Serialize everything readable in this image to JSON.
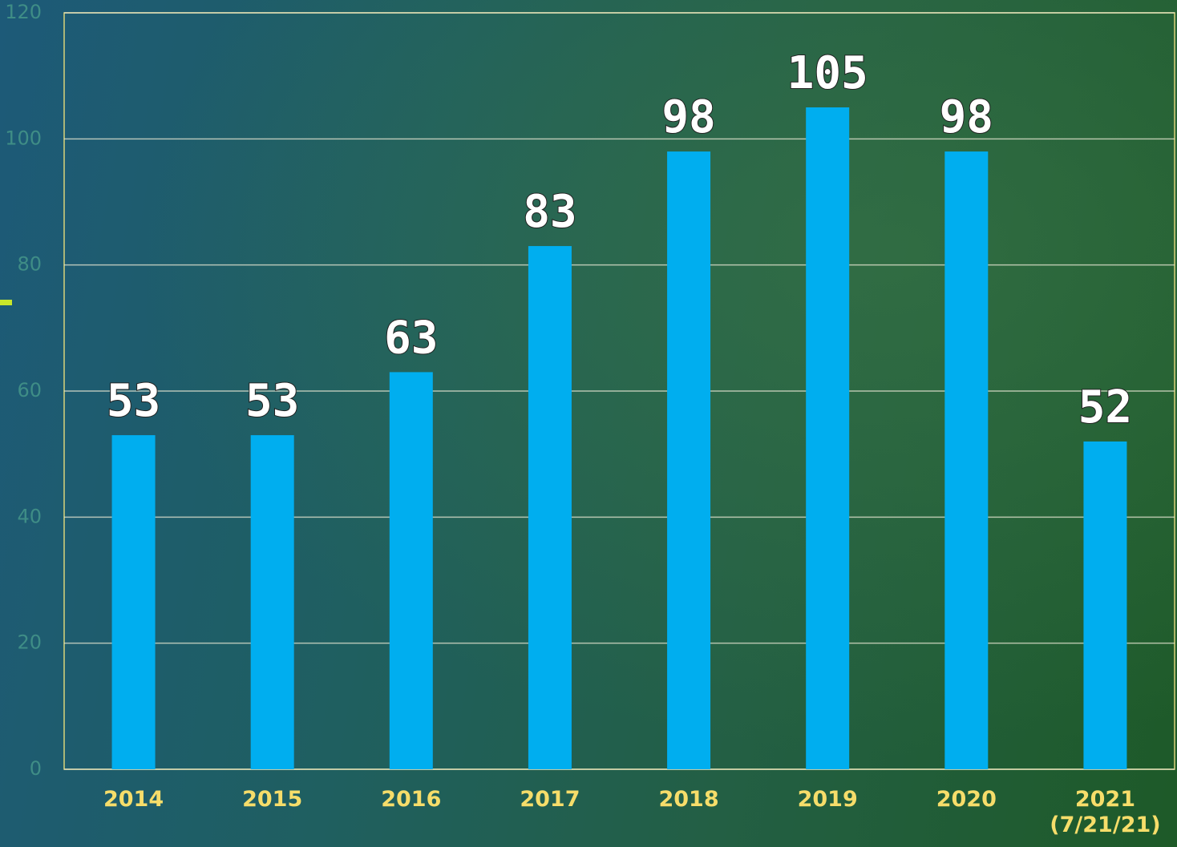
{
  "chart_data": {
    "type": "bar",
    "categories": [
      "2014",
      "2015",
      "2016",
      "2017",
      "2018",
      "2019",
      "2020",
      "2021\n(7/21/21)"
    ],
    "values": [
      53,
      53,
      63,
      83,
      98,
      105,
      98,
      52
    ],
    "color": "#00aeef",
    "ylim": [
      0,
      120
    ],
    "yticks": [
      0,
      20,
      40,
      60,
      80,
      100,
      120
    ],
    "grid": true
  }
}
